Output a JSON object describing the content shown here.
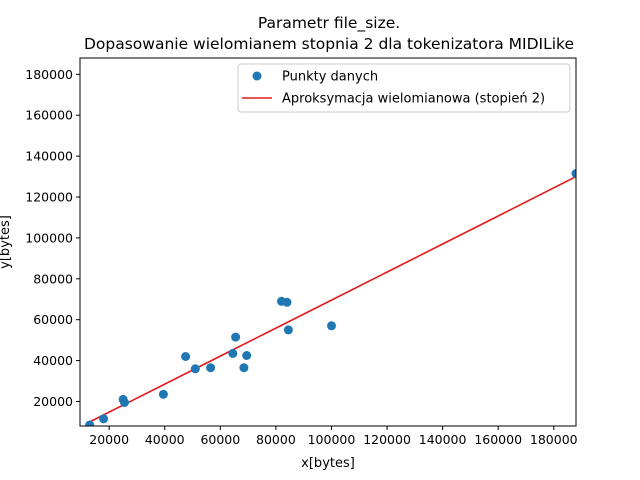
{
  "chart_data": {
    "type": "scatter",
    "title": "Parametr file_size.",
    "subtitle": "Dopasowanie wielomianem stopnia 2 dla tokenizatora MIDILike",
    "xlabel": "x[bytes]",
    "ylabel": "y[bytes]",
    "xlim": [
      9500,
      188000
    ],
    "ylim": [
      8000,
      188000
    ],
    "xticks": [
      20000,
      40000,
      60000,
      80000,
      100000,
      120000,
      140000,
      160000,
      180000
    ],
    "yticks": [
      20000,
      40000,
      60000,
      80000,
      100000,
      120000,
      140000,
      160000,
      180000
    ],
    "xtick_labels": [
      "20000",
      "40000",
      "60000",
      "80000",
      "100000",
      "120000",
      "140000",
      "160000",
      "180000"
    ],
    "ytick_labels": [
      "20000",
      "40000",
      "60000",
      "80000",
      "100000",
      "120000",
      "140000",
      "160000",
      "180000"
    ],
    "grid": false,
    "legend_position": "top-right",
    "series": [
      {
        "name": "Punkty danych",
        "kind": "scatter",
        "color": "#1f77b4",
        "points": [
          [
            13000,
            8500
          ],
          [
            18000,
            11500
          ],
          [
            25000,
            21000
          ],
          [
            25500,
            19500
          ],
          [
            39500,
            23500
          ],
          [
            47500,
            42000
          ],
          [
            51000,
            36000
          ],
          [
            56500,
            36500
          ],
          [
            64500,
            43500
          ],
          [
            65500,
            51500
          ],
          [
            68500,
            36500
          ],
          [
            69500,
            42500
          ],
          [
            82000,
            69000
          ],
          [
            84000,
            68500
          ],
          [
            84500,
            55000
          ],
          [
            100000,
            57000
          ],
          [
            188000,
            131500
          ]
        ]
      },
      {
        "name": "Aproksymacja wielomianowa (stopień 2)",
        "kind": "line",
        "color": "#e41a1c",
        "x": [
          13000,
          40000,
          60000,
          80000,
          100000,
          120000,
          140000,
          160000,
          188000
        ],
        "y": [
          10000,
          28500,
          42200,
          55900,
          69600,
          83300,
          97000,
          110700,
          130000
        ]
      }
    ]
  }
}
